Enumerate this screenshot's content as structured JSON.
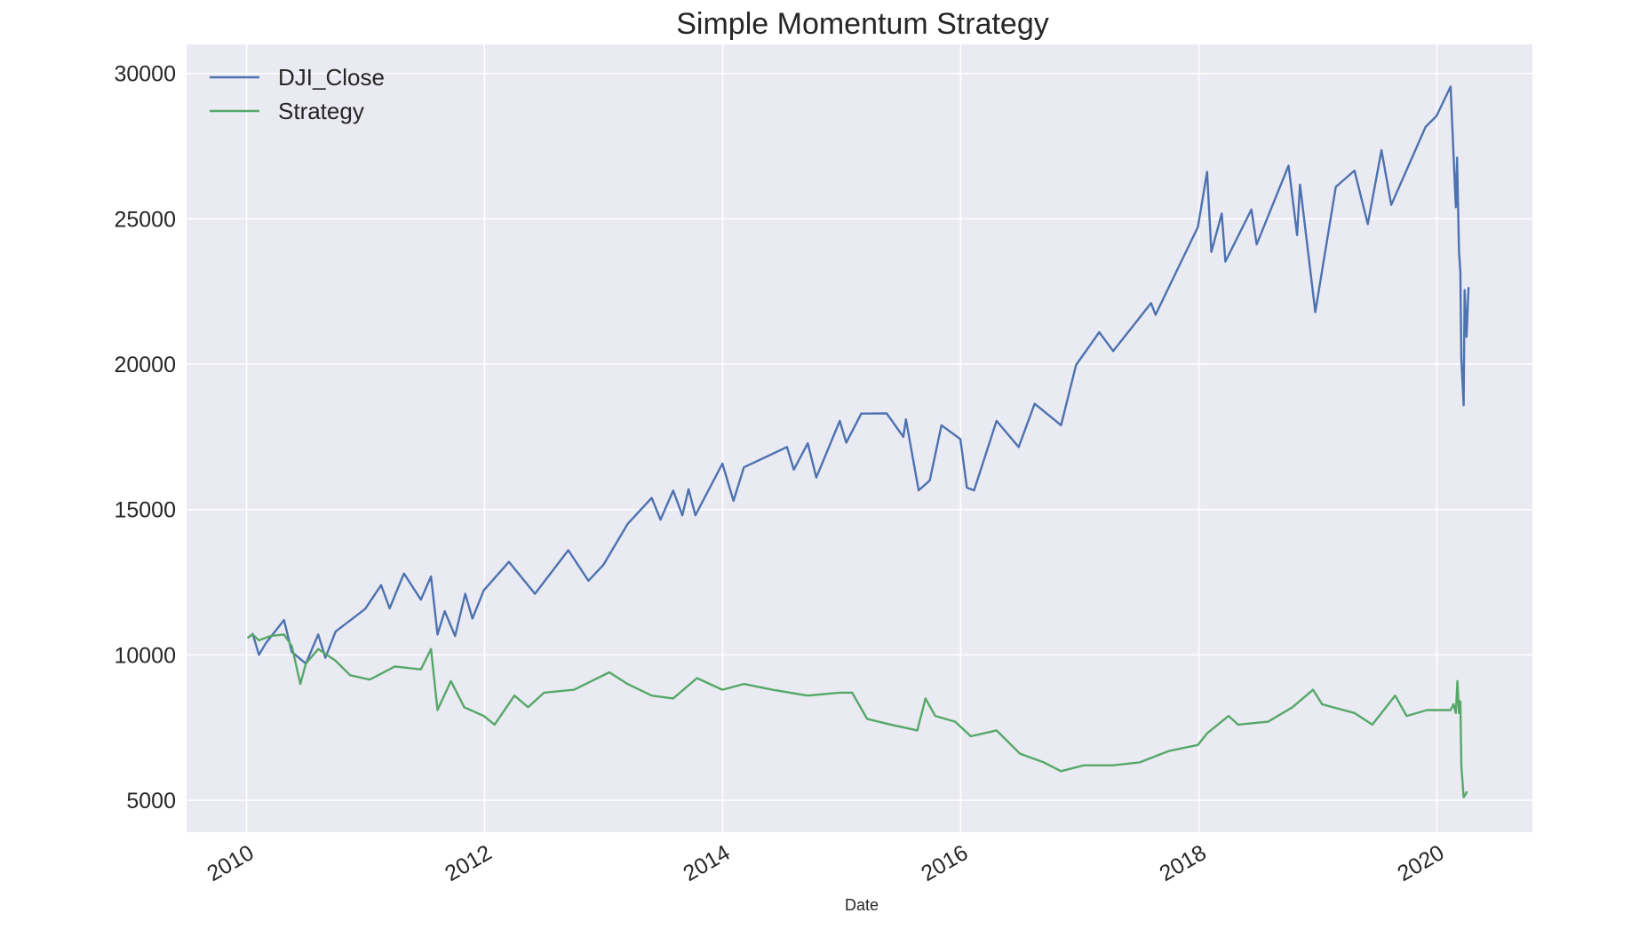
{
  "chart_data": {
    "type": "line",
    "title": "Simple Momentum Strategy",
    "xlabel": "Date",
    "ylabel": "",
    "x_axis_type": "date",
    "xlim": [
      "2009-07-01",
      "2020-10-20"
    ],
    "ylim": [
      3900,
      31000
    ],
    "x_ticks": [
      "2010",
      "2012",
      "2014",
      "2016",
      "2018",
      "2020"
    ],
    "y_ticks": [
      5000,
      10000,
      15000,
      20000,
      25000,
      30000
    ],
    "grid": true,
    "background": "#eaeaf2",
    "legend": {
      "placement": "top-left",
      "entries": [
        "DJI_Close",
        "Strategy"
      ]
    },
    "series": [
      {
        "name": "DJI_Close",
        "color": "#4c72b0",
        "points": [
          [
            "2010-01-04",
            10580
          ],
          [
            "2010-01-20",
            10720
          ],
          [
            "2010-02-08",
            10000
          ],
          [
            "2010-03-01",
            10400
          ],
          [
            "2010-04-26",
            11200
          ],
          [
            "2010-05-20",
            10100
          ],
          [
            "2010-07-02",
            9700
          ],
          [
            "2010-08-09",
            10700
          ],
          [
            "2010-08-31",
            9900
          ],
          [
            "2010-10-01",
            10800
          ],
          [
            "2010-12-31",
            11580
          ],
          [
            "2011-02-18",
            12400
          ],
          [
            "2011-03-16",
            11600
          ],
          [
            "2011-04-29",
            12800
          ],
          [
            "2011-06-20",
            11900
          ],
          [
            "2011-07-21",
            12700
          ],
          [
            "2011-08-10",
            10700
          ],
          [
            "2011-09-01",
            11500
          ],
          [
            "2011-10-03",
            10650
          ],
          [
            "2011-11-03",
            12100
          ],
          [
            "2011-11-25",
            11250
          ],
          [
            "2011-12-30",
            12220
          ],
          [
            "2012-03-16",
            13200
          ],
          [
            "2012-06-04",
            12100
          ],
          [
            "2012-09-14",
            13600
          ],
          [
            "2012-11-15",
            12550
          ],
          [
            "2012-12-31",
            13100
          ],
          [
            "2013-03-15",
            14500
          ],
          [
            "2013-05-28",
            15400
          ],
          [
            "2013-06-24",
            14650
          ],
          [
            "2013-08-02",
            15650
          ],
          [
            "2013-08-30",
            14800
          ],
          [
            "2013-09-18",
            15700
          ],
          [
            "2013-10-09",
            14800
          ],
          [
            "2013-12-31",
            16580
          ],
          [
            "2014-02-03",
            15300
          ],
          [
            "2014-03-07",
            16450
          ],
          [
            "2014-07-17",
            17150
          ],
          [
            "2014-08-07",
            16370
          ],
          [
            "2014-09-19",
            17280
          ],
          [
            "2014-10-15",
            16100
          ],
          [
            "2014-12-26",
            18050
          ],
          [
            "2015-01-15",
            17300
          ],
          [
            "2015-03-02",
            18300
          ],
          [
            "2015-05-19",
            18310
          ],
          [
            "2015-07-09",
            17500
          ],
          [
            "2015-07-17",
            18100
          ],
          [
            "2015-08-25",
            15660
          ],
          [
            "2015-09-28",
            16000
          ],
          [
            "2015-11-03",
            17900
          ],
          [
            "2015-12-31",
            17420
          ],
          [
            "2016-01-20",
            15750
          ],
          [
            "2016-02-11",
            15660
          ],
          [
            "2016-04-20",
            18050
          ],
          [
            "2016-06-27",
            17150
          ],
          [
            "2016-08-15",
            18640
          ],
          [
            "2016-11-04",
            17900
          ],
          [
            "2016-12-20",
            19970
          ],
          [
            "2017-03-01",
            21100
          ],
          [
            "2017-04-13",
            20450
          ],
          [
            "2017-08-07",
            22100
          ],
          [
            "2017-08-21",
            21700
          ],
          [
            "2017-12-29",
            24720
          ],
          [
            "2018-01-26",
            26620
          ],
          [
            "2018-02-08",
            23860
          ],
          [
            "2018-03-12",
            25180
          ],
          [
            "2018-03-23",
            23530
          ],
          [
            "2018-06-11",
            25320
          ],
          [
            "2018-06-27",
            24120
          ],
          [
            "2018-10-03",
            26830
          ],
          [
            "2018-10-29",
            24440
          ],
          [
            "2018-11-07",
            26180
          ],
          [
            "2018-12-24",
            21790
          ],
          [
            "2019-02-25",
            26100
          ],
          [
            "2019-04-23",
            26660
          ],
          [
            "2019-06-03",
            24820
          ],
          [
            "2019-07-15",
            27360
          ],
          [
            "2019-08-14",
            25480
          ],
          [
            "2019-11-27",
            28160
          ],
          [
            "2019-12-31",
            28540
          ],
          [
            "2020-02-12",
            29550
          ],
          [
            "2020-02-28",
            25400
          ],
          [
            "2020-03-03",
            27100
          ],
          [
            "2020-03-09",
            23850
          ],
          [
            "2020-03-13",
            23180
          ],
          [
            "2020-03-16",
            20190
          ],
          [
            "2020-03-23",
            18590
          ],
          [
            "2020-03-26",
            22550
          ],
          [
            "2020-04-01",
            20940
          ],
          [
            "2020-04-07",
            22650
          ]
        ]
      },
      {
        "name": "Strategy",
        "color": "#55a868",
        "points": [
          [
            "2010-01-04",
            10580
          ],
          [
            "2010-01-20",
            10700
          ],
          [
            "2010-02-08",
            10500
          ],
          [
            "2010-03-15",
            10650
          ],
          [
            "2010-04-26",
            10700
          ],
          [
            "2010-05-20",
            10300
          ],
          [
            "2010-06-15",
            9000
          ],
          [
            "2010-07-02",
            9700
          ],
          [
            "2010-08-09",
            10200
          ],
          [
            "2010-10-01",
            9800
          ],
          [
            "2010-11-15",
            9300
          ],
          [
            "2011-01-14",
            9150
          ],
          [
            "2011-04-01",
            9600
          ],
          [
            "2011-06-20",
            9500
          ],
          [
            "2011-07-21",
            10200
          ],
          [
            "2011-08-10",
            8100
          ],
          [
            "2011-09-20",
            9100
          ],
          [
            "2011-10-31",
            8200
          ],
          [
            "2011-12-30",
            7900
          ],
          [
            "2012-02-01",
            7600
          ],
          [
            "2012-04-02",
            8600
          ],
          [
            "2012-05-14",
            8200
          ],
          [
            "2012-07-02",
            8700
          ],
          [
            "2012-10-02",
            8800
          ],
          [
            "2013-01-18",
            9400
          ],
          [
            "2013-03-15",
            9000
          ],
          [
            "2013-05-28",
            8600
          ],
          [
            "2013-08-02",
            8500
          ],
          [
            "2013-10-14",
            9200
          ],
          [
            "2013-12-31",
            8800
          ],
          [
            "2014-03-07",
            9000
          ],
          [
            "2014-06-02",
            8800
          ],
          [
            "2014-09-19",
            8600
          ],
          [
            "2014-12-26",
            8700
          ],
          [
            "2015-02-02",
            8700
          ],
          [
            "2015-03-20",
            7800
          ],
          [
            "2015-06-01",
            7600
          ],
          [
            "2015-08-21",
            7400
          ],
          [
            "2015-09-15",
            8500
          ],
          [
            "2015-10-15",
            7900
          ],
          [
            "2015-12-15",
            7700
          ],
          [
            "2016-02-01",
            7200
          ],
          [
            "2016-04-20",
            7400
          ],
          [
            "2016-07-01",
            6600
          ],
          [
            "2016-09-12",
            6300
          ],
          [
            "2016-11-04",
            6000
          ],
          [
            "2017-01-13",
            6200
          ],
          [
            "2017-04-13",
            6200
          ],
          [
            "2017-07-03",
            6300
          ],
          [
            "2017-10-02",
            6700
          ],
          [
            "2017-12-29",
            6900
          ],
          [
            "2018-01-26",
            7300
          ],
          [
            "2018-04-02",
            7900
          ],
          [
            "2018-05-01",
            7600
          ],
          [
            "2018-08-01",
            7700
          ],
          [
            "2018-10-15",
            8200
          ],
          [
            "2018-12-17",
            8800
          ],
          [
            "2019-01-14",
            8300
          ],
          [
            "2019-04-23",
            8000
          ],
          [
            "2019-06-17",
            7600
          ],
          [
            "2019-08-26",
            8600
          ],
          [
            "2019-09-30",
            7900
          ],
          [
            "2019-12-02",
            8100
          ],
          [
            "2020-02-12",
            8100
          ],
          [
            "2020-02-21",
            8300
          ],
          [
            "2020-02-28",
            8000
          ],
          [
            "2020-03-04",
            9100
          ],
          [
            "2020-03-09",
            8000
          ],
          [
            "2020-03-13",
            8400
          ],
          [
            "2020-03-16",
            6200
          ],
          [
            "2020-03-23",
            5100
          ],
          [
            "2020-04-03",
            5300
          ]
        ]
      }
    ]
  }
}
